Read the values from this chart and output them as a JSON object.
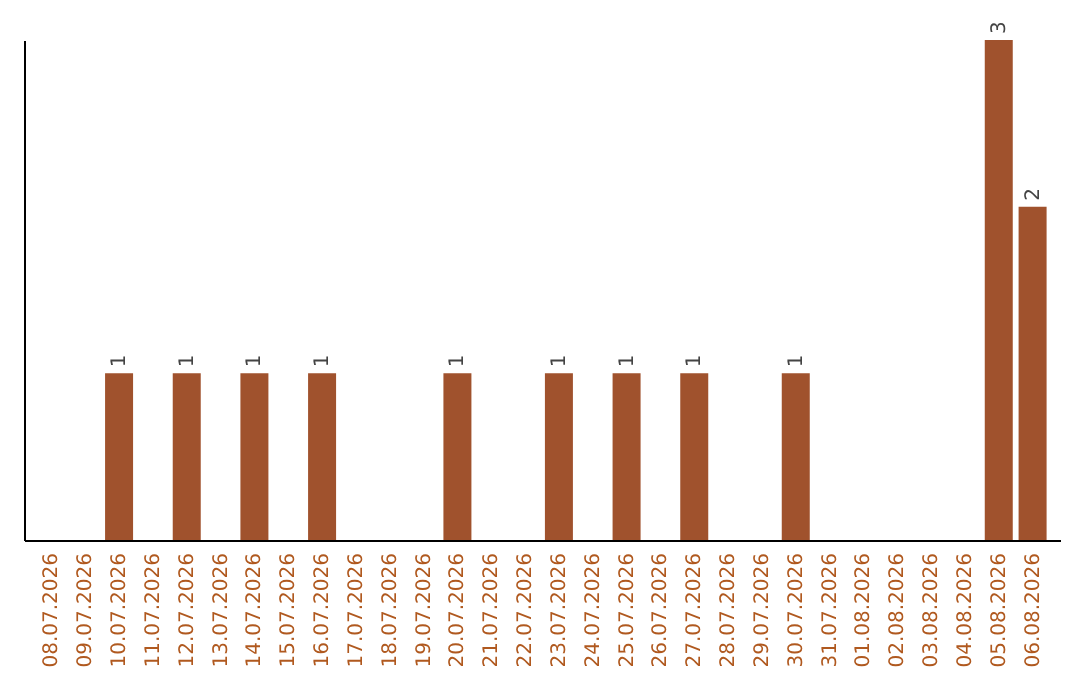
{
  "chart_data": {
    "type": "bar",
    "categories": [
      "08.07.2026",
      "09.07.2026",
      "10.07.2026",
      "11.07.2026",
      "12.07.2026",
      "13.07.2026",
      "14.07.2026",
      "15.07.2026",
      "16.07.2026",
      "17.07.2026",
      "18.07.2026",
      "19.07.2026",
      "20.07.2026",
      "21.07.2026",
      "22.07.2026",
      "23.07.2026",
      "24.07.2026",
      "25.07.2026",
      "26.07.2026",
      "27.07.2026",
      "28.07.2026",
      "29.07.2026",
      "30.07.2026",
      "31.07.2026",
      "01.08.2026",
      "02.08.2026",
      "03.08.2026",
      "04.08.2026",
      "05.08.2026",
      "06.08.2026"
    ],
    "values": [
      0,
      0,
      1,
      0,
      1,
      0,
      1,
      0,
      1,
      0,
      0,
      0,
      1,
      0,
      0,
      1,
      0,
      1,
      0,
      1,
      0,
      0,
      1,
      0,
      0,
      0,
      0,
      0,
      3,
      2
    ],
    "value_labels": [
      null,
      null,
      "1",
      null,
      "1",
      null,
      "1",
      null,
      "1",
      null,
      null,
      null,
      "1",
      null,
      null,
      "1",
      null,
      "1",
      null,
      "1",
      null,
      null,
      "1",
      null,
      null,
      null,
      null,
      null,
      "3",
      "2"
    ],
    "color": "#a0522d",
    "grid": false,
    "tick_labels": "x"
  }
}
